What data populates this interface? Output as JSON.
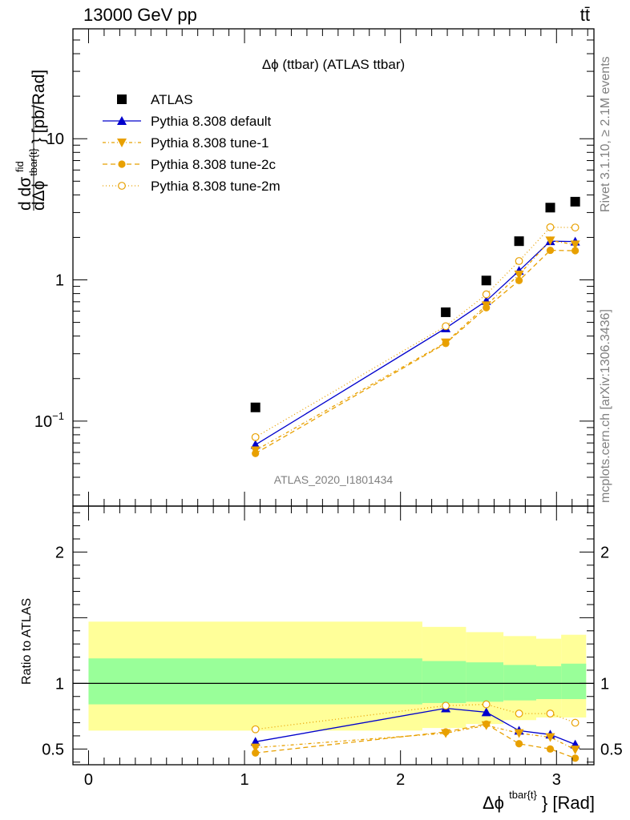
{
  "header": {
    "energy_label": "13000 GeV pp",
    "process_label": "tt̄"
  },
  "side_labels": {
    "rivet": "Rivet 3.1.10, ≥ 2.1M events",
    "mcplots": "mcplots.cern.ch [arXiv:1306.3436]"
  },
  "analysis_label": "ATLAS_2020_I1801434",
  "chart_data": [
    {
      "type": "scatter",
      "title": "Δϕ (ttbar) (ATLAS ttbar)",
      "ylabel_parts": {
        "d_num": "dσ",
        "num_sup": "fid",
        "den": "dΔϕ",
        "den_sup": "tbar{t}",
        "unit": "} [pb/Rad]"
      },
      "yscale": "log",
      "ylim": [
        0.025,
        60
      ],
      "xlim": [
        -0.1,
        3.24
      ],
      "yticks": [
        {
          "value": 10,
          "label": "10"
        },
        {
          "value": 1,
          "label": "1"
        },
        {
          "value": 0.1,
          "base": "10",
          "exp": "−1"
        }
      ],
      "x": [
        1.07,
        2.29,
        2.55,
        2.76,
        2.96,
        3.12
      ],
      "legend_position": "top-left",
      "series": [
        {
          "name": "ATLAS",
          "values": [
            0.125,
            0.59,
            0.99,
            1.88,
            3.25,
            3.58
          ],
          "color": "#000000",
          "marker": "square"
        },
        {
          "name": "Pythia 8.308 default",
          "values": [
            0.068,
            0.455,
            0.71,
            1.16,
            1.88,
            1.87
          ],
          "color": "#0000cc",
          "marker": "triangle-up",
          "dash": ""
        },
        {
          "name": "Pythia 8.308 tune-1",
          "values": [
            0.062,
            0.36,
            0.66,
            1.09,
            1.9,
            1.78
          ],
          "color": "#e8a000",
          "marker": "triangle-down",
          "dash": "4,3,1,3"
        },
        {
          "name": "Pythia 8.308 tune-2c",
          "values": [
            0.059,
            0.355,
            0.635,
            0.99,
            1.62,
            1.61
          ],
          "color": "#e8a000",
          "marker": "circle",
          "dash": "6,4"
        },
        {
          "name": "Pythia 8.308 tune-2m",
          "values": [
            0.077,
            0.47,
            0.79,
            1.36,
            2.36,
            2.35
          ],
          "color": "#e8a000",
          "marker": "circle-open",
          "dash": "1,3"
        }
      ]
    },
    {
      "type": "scatter",
      "ylabel": "Ratio to ATLAS",
      "xlabel_parts": {
        "main": "Δϕ",
        "sup": "tbar{t}",
        "unit": "} [Rad]"
      },
      "ylim": [
        0.38,
        2.35
      ],
      "xlim": [
        -0.1,
        3.24
      ],
      "yticks": [
        {
          "value": 0.5,
          "label": "0.5"
        },
        {
          "value": 1,
          "label": "1"
        },
        {
          "value": 2,
          "label": "2"
        }
      ],
      "xticks": [
        {
          "value": 0,
          "label": "0"
        },
        {
          "value": 1,
          "label": "1"
        },
        {
          "value": 2,
          "label": "2"
        },
        {
          "value": 3,
          "label": "3"
        }
      ],
      "reference_line": 1,
      "uncertainty_bands": {
        "bins": [
          [
            0,
            2.14
          ],
          [
            2.14,
            2.42
          ],
          [
            2.42,
            2.66
          ],
          [
            2.66,
            2.87
          ],
          [
            2.87,
            3.03
          ],
          [
            3.03,
            3.19
          ]
        ],
        "outer": [
          [
            0.64,
            1.47
          ],
          [
            0.66,
            1.43
          ],
          [
            0.69,
            1.39
          ],
          [
            0.72,
            1.36
          ],
          [
            0.74,
            1.34
          ],
          [
            0.74,
            1.37
          ]
        ],
        "inner": [
          [
            0.84,
            1.19
          ],
          [
            0.85,
            1.17
          ],
          [
            0.86,
            1.16
          ],
          [
            0.87,
            1.14
          ],
          [
            0.88,
            1.13
          ],
          [
            0.88,
            1.15
          ]
        ],
        "outer_color": "#ffff99",
        "inner_color": "#99ff99"
      },
      "x": [
        1.07,
        2.29,
        2.55,
        2.76,
        2.96,
        3.12
      ],
      "series": [
        {
          "values": [
            0.555,
            0.81,
            0.78,
            0.64,
            0.61,
            0.535
          ],
          "color": "#0000cc",
          "marker": "triangle-up",
          "dash": ""
        },
        {
          "values": [
            0.51,
            0.62,
            0.68,
            0.62,
            0.59,
            0.495
          ],
          "color": "#e8a000",
          "marker": "triangle-down",
          "dash": "4,3,1,3"
        },
        {
          "values": [
            0.47,
            0.63,
            0.69,
            0.54,
            0.5,
            0.43
          ],
          "color": "#e8a000",
          "marker": "circle",
          "dash": "6,4"
        },
        {
          "values": [
            0.65,
            0.83,
            0.84,
            0.77,
            0.77,
            0.7
          ],
          "color": "#e8a000",
          "marker": "circle-open",
          "dash": "1,3"
        }
      ]
    }
  ]
}
